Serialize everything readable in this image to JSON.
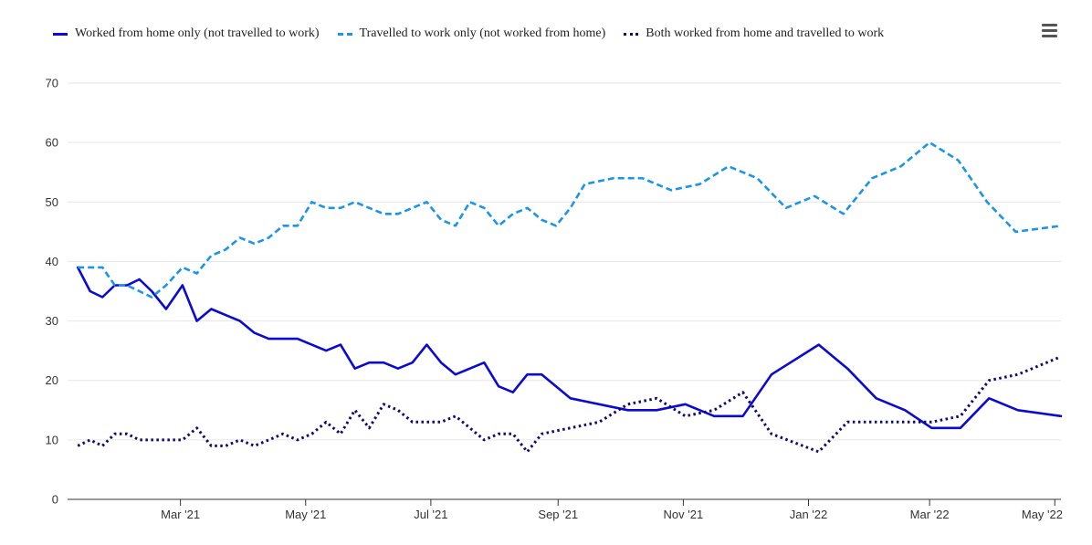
{
  "menu": {
    "icon": "hamburger-menu-icon"
  },
  "chart_data": {
    "type": "line",
    "ylim": [
      0,
      70
    ],
    "yticks": [
      0,
      10,
      20,
      30,
      40,
      50,
      60,
      70
    ],
    "xlim": [
      "2021-01-05",
      "2022-05-04"
    ],
    "xticks": [
      {
        "date": "2021-03-01",
        "label": "Mar '21"
      },
      {
        "date": "2021-05-01",
        "label": "May '21"
      },
      {
        "date": "2021-07-01",
        "label": "Jul '21"
      },
      {
        "date": "2021-09-01",
        "label": "Sep '21"
      },
      {
        "date": "2021-11-01",
        "label": "Nov '21"
      },
      {
        "date": "2022-01-01",
        "label": "Jan '22"
      },
      {
        "date": "2022-03-01",
        "label": "Mar '22"
      },
      {
        "date": "2022-05-01",
        "label": "May '22"
      }
    ],
    "grid": true,
    "legend_position": "top-left",
    "series": [
      {
        "name": "Worked from home only (not travelled to work)",
        "color": "#0a0ad2",
        "style": "solid",
        "points": [
          [
            "2021-01-10",
            39
          ],
          [
            "2021-01-16",
            35
          ],
          [
            "2021-01-22",
            34
          ],
          [
            "2021-01-28",
            36
          ],
          [
            "2021-02-03",
            36
          ],
          [
            "2021-02-09",
            37
          ],
          [
            "2021-02-15",
            35
          ],
          [
            "2021-02-22",
            32
          ],
          [
            "2021-03-02",
            36
          ],
          [
            "2021-03-09",
            30
          ],
          [
            "2021-03-16",
            32
          ],
          [
            "2021-03-23",
            31
          ],
          [
            "2021-03-30",
            30
          ],
          [
            "2021-04-06",
            28
          ],
          [
            "2021-04-13",
            27
          ],
          [
            "2021-04-20",
            27
          ],
          [
            "2021-04-27",
            27
          ],
          [
            "2021-05-04",
            26
          ],
          [
            "2021-05-11",
            25
          ],
          [
            "2021-05-18",
            26
          ],
          [
            "2021-05-25",
            22
          ],
          [
            "2021-06-01",
            23
          ],
          [
            "2021-06-08",
            23
          ],
          [
            "2021-06-15",
            22
          ],
          [
            "2021-06-22",
            23
          ],
          [
            "2021-06-29",
            26
          ],
          [
            "2021-07-06",
            23
          ],
          [
            "2021-07-13",
            21
          ],
          [
            "2021-07-20",
            22
          ],
          [
            "2021-07-27",
            23
          ],
          [
            "2021-08-03",
            19
          ],
          [
            "2021-08-10",
            18
          ],
          [
            "2021-08-17",
            21
          ],
          [
            "2021-08-24",
            21
          ],
          [
            "2021-09-07",
            17
          ],
          [
            "2021-10-05",
            15
          ],
          [
            "2021-10-19",
            15
          ],
          [
            "2021-11-02",
            16
          ],
          [
            "2021-11-16",
            14
          ],
          [
            "2021-11-30",
            14
          ],
          [
            "2021-12-14",
            21
          ],
          [
            "2022-01-06",
            26
          ],
          [
            "2022-01-20",
            22
          ],
          [
            "2022-02-03",
            17
          ],
          [
            "2022-02-17",
            15
          ],
          [
            "2022-03-02",
            12
          ],
          [
            "2022-03-16",
            12
          ],
          [
            "2022-03-30",
            17
          ],
          [
            "2022-04-13",
            15
          ],
          [
            "2022-05-04",
            14
          ]
        ]
      },
      {
        "name": "Travelled to work only (not worked from home)",
        "color": "#1a96e8",
        "style": "dashed",
        "points": [
          [
            "2021-01-10",
            39
          ],
          [
            "2021-01-22",
            39
          ],
          [
            "2021-01-28",
            36
          ],
          [
            "2021-02-03",
            36
          ],
          [
            "2021-02-09",
            35
          ],
          [
            "2021-02-15",
            34
          ],
          [
            "2021-02-22",
            36
          ],
          [
            "2021-03-02",
            39
          ],
          [
            "2021-03-09",
            38
          ],
          [
            "2021-03-16",
            41
          ],
          [
            "2021-03-23",
            42
          ],
          [
            "2021-03-30",
            44
          ],
          [
            "2021-04-06",
            43
          ],
          [
            "2021-04-13",
            44
          ],
          [
            "2021-04-20",
            46
          ],
          [
            "2021-04-27",
            46
          ],
          [
            "2021-05-04",
            50
          ],
          [
            "2021-05-11",
            49
          ],
          [
            "2021-05-18",
            49
          ],
          [
            "2021-05-25",
            50
          ],
          [
            "2021-06-01",
            49
          ],
          [
            "2021-06-08",
            48
          ],
          [
            "2021-06-15",
            48
          ],
          [
            "2021-06-22",
            49
          ],
          [
            "2021-06-29",
            50
          ],
          [
            "2021-07-06",
            47
          ],
          [
            "2021-07-13",
            46
          ],
          [
            "2021-07-20",
            50
          ],
          [
            "2021-07-27",
            49
          ],
          [
            "2021-08-03",
            46
          ],
          [
            "2021-08-10",
            48
          ],
          [
            "2021-08-17",
            49
          ],
          [
            "2021-08-24",
            47
          ],
          [
            "2021-08-31",
            46
          ],
          [
            "2021-09-07",
            49
          ],
          [
            "2021-09-14",
            53
          ],
          [
            "2021-09-28",
            54
          ],
          [
            "2021-10-12",
            54
          ],
          [
            "2021-10-26",
            52
          ],
          [
            "2021-11-09",
            53
          ],
          [
            "2021-11-23",
            56
          ],
          [
            "2021-12-07",
            54
          ],
          [
            "2021-12-21",
            49
          ],
          [
            "2022-01-04",
            51
          ],
          [
            "2022-01-18",
            48
          ],
          [
            "2022-02-01",
            54
          ],
          [
            "2022-02-15",
            56
          ],
          [
            "2022-03-01",
            60
          ],
          [
            "2022-03-15",
            57
          ],
          [
            "2022-03-29",
            50
          ],
          [
            "2022-04-12",
            45
          ],
          [
            "2022-05-04",
            46
          ]
        ]
      },
      {
        "name": "Both worked from home and travelled to work",
        "color": "#0d0b6e",
        "style": "dotted",
        "points": [
          [
            "2021-01-10",
            9
          ],
          [
            "2021-01-16",
            10
          ],
          [
            "2021-01-22",
            9
          ],
          [
            "2021-01-28",
            11
          ],
          [
            "2021-02-03",
            11
          ],
          [
            "2021-02-09",
            10
          ],
          [
            "2021-02-15",
            10
          ],
          [
            "2021-02-22",
            10
          ],
          [
            "2021-03-02",
            10
          ],
          [
            "2021-03-09",
            12
          ],
          [
            "2021-03-16",
            9
          ],
          [
            "2021-03-23",
            9
          ],
          [
            "2021-03-30",
            10
          ],
          [
            "2021-04-06",
            9
          ],
          [
            "2021-04-13",
            10
          ],
          [
            "2021-04-20",
            11
          ],
          [
            "2021-04-27",
            10
          ],
          [
            "2021-05-04",
            11
          ],
          [
            "2021-05-11",
            13
          ],
          [
            "2021-05-18",
            11
          ],
          [
            "2021-05-25",
            15
          ],
          [
            "2021-06-01",
            12
          ],
          [
            "2021-06-08",
            16
          ],
          [
            "2021-06-15",
            15
          ],
          [
            "2021-06-22",
            13
          ],
          [
            "2021-07-06",
            13
          ],
          [
            "2021-07-13",
            14
          ],
          [
            "2021-07-20",
            12
          ],
          [
            "2021-07-27",
            10
          ],
          [
            "2021-08-03",
            11
          ],
          [
            "2021-08-10",
            11
          ],
          [
            "2021-08-17",
            8
          ],
          [
            "2021-08-24",
            11
          ],
          [
            "2021-09-07",
            12
          ],
          [
            "2021-09-21",
            13
          ],
          [
            "2021-10-05",
            16
          ],
          [
            "2021-10-19",
            17
          ],
          [
            "2021-11-02",
            14
          ],
          [
            "2021-11-16",
            15
          ],
          [
            "2021-11-30",
            18
          ],
          [
            "2021-12-14",
            11
          ],
          [
            "2022-01-06",
            8
          ],
          [
            "2022-01-20",
            13
          ],
          [
            "2022-03-02",
            13
          ],
          [
            "2022-03-16",
            14
          ],
          [
            "2022-03-30",
            20
          ],
          [
            "2022-04-13",
            21
          ],
          [
            "2022-05-04",
            24
          ]
        ]
      }
    ]
  }
}
